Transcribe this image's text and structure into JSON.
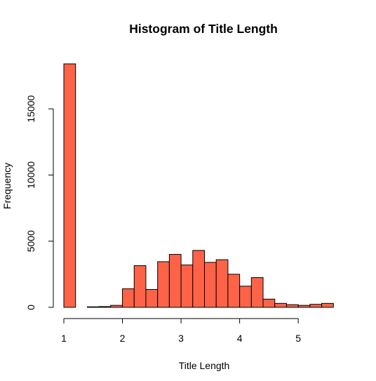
{
  "chart_data": {
    "type": "bar",
    "title": "Histogram of Title Length",
    "xlabel": "Title Length",
    "ylabel": "Frequency",
    "bar_color": "#FF6347",
    "xlim": [
      1,
      5.8
    ],
    "ylim": [
      0,
      18400
    ],
    "x_ticks": [
      1,
      2,
      3,
      4,
      5
    ],
    "x_tick_labels": [
      "1",
      "2",
      "3",
      "4",
      "5"
    ],
    "y_ticks": [
      0,
      5000,
      10000,
      15000
    ],
    "y_tick_labels": [
      "0",
      "5000",
      "10000",
      "15000"
    ],
    "bins": [
      {
        "x0": 1.0,
        "x1": 1.2,
        "count": 18400
      },
      {
        "x0": 1.2,
        "x1": 1.4,
        "count": 0
      },
      {
        "x0": 1.4,
        "x1": 1.6,
        "count": 40
      },
      {
        "x0": 1.6,
        "x1": 1.8,
        "count": 60
      },
      {
        "x0": 1.8,
        "x1": 2.0,
        "count": 150
      },
      {
        "x0": 2.0,
        "x1": 2.2,
        "count": 1400
      },
      {
        "x0": 2.2,
        "x1": 2.4,
        "count": 3150
      },
      {
        "x0": 2.4,
        "x1": 2.6,
        "count": 1350
      },
      {
        "x0": 2.6,
        "x1": 2.8,
        "count": 3450
      },
      {
        "x0": 2.8,
        "x1": 3.0,
        "count": 4000
      },
      {
        "x0": 3.0,
        "x1": 3.2,
        "count": 3200
      },
      {
        "x0": 3.2,
        "x1": 3.4,
        "count": 4300
      },
      {
        "x0": 3.4,
        "x1": 3.6,
        "count": 3400
      },
      {
        "x0": 3.6,
        "x1": 3.8,
        "count": 3600
      },
      {
        "x0": 3.8,
        "x1": 4.0,
        "count": 2500
      },
      {
        "x0": 4.0,
        "x1": 4.2,
        "count": 1600
      },
      {
        "x0": 4.2,
        "x1": 4.4,
        "count": 2250
      },
      {
        "x0": 4.4,
        "x1": 4.6,
        "count": 620
      },
      {
        "x0": 4.6,
        "x1": 4.8,
        "count": 300
      },
      {
        "x0": 4.8,
        "x1": 5.0,
        "count": 200
      },
      {
        "x0": 5.0,
        "x1": 5.2,
        "count": 150
      },
      {
        "x0": 5.2,
        "x1": 5.4,
        "count": 230
      },
      {
        "x0": 5.4,
        "x1": 5.6,
        "count": 300
      }
    ]
  }
}
